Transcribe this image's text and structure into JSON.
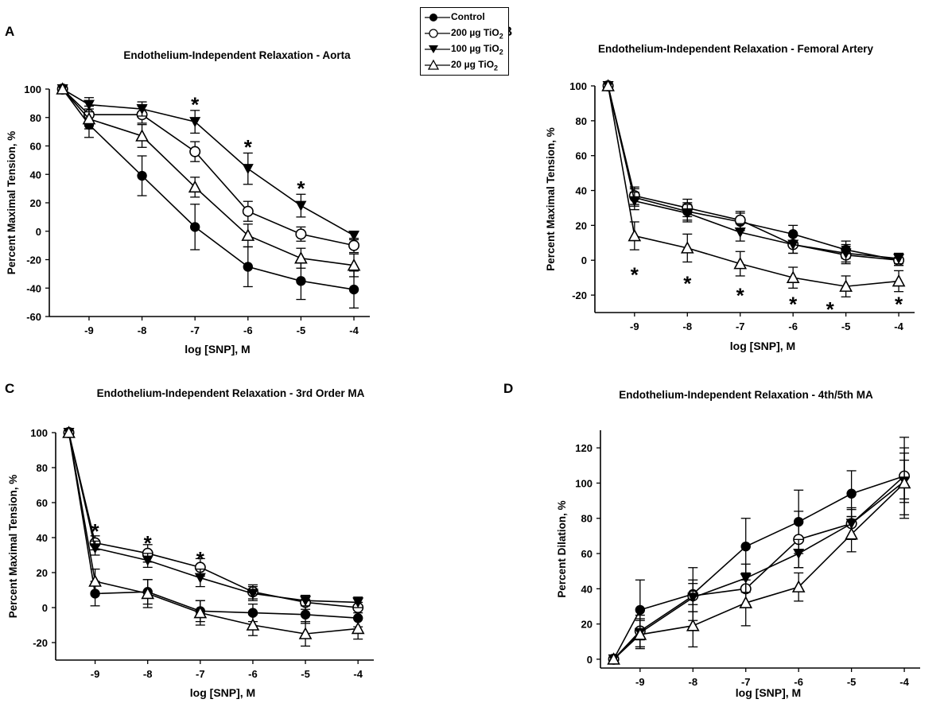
{
  "legend": {
    "entries": [
      {
        "label": "Control",
        "sub": "",
        "marker": "filled-circle"
      },
      {
        "label": "200 µg TiO",
        "sub": "2",
        "marker": "open-circle"
      },
      {
        "label": "100 µg TiO",
        "sub": "2",
        "marker": "filled-triangle-down"
      },
      {
        "label": "20 µg TiO",
        "sub": "2",
        "marker": "open-triangle-up"
      }
    ]
  },
  "colors": {
    "ink": "#000000",
    "background": "#ffffff"
  },
  "chart_data": [
    {
      "panel": "A",
      "type": "line",
      "title": "Endothelium-Independent Relaxation - Aorta",
      "xlabel": "log [SNP], M",
      "ylabel": "Percent Maximal Tension, %",
      "x": [
        -9.5,
        -9,
        -8,
        -7,
        -6,
        -5,
        -4
      ],
      "xticks": [
        -9,
        -8,
        -7,
        -6,
        -5,
        -4
      ],
      "xlim": [
        -9.75,
        -3.7
      ],
      "ylim": [
        -60,
        100
      ],
      "yticks": [
        -60,
        -40,
        -20,
        0,
        20,
        40,
        60,
        80,
        100
      ],
      "series": [
        {
          "name": "Control",
          "marker": "filled-circle",
          "values": [
            100,
            75,
            39,
            3,
            -25,
            -35,
            -41
          ],
          "errors": [
            0,
            9,
            14,
            16,
            14,
            13,
            13
          ]
        },
        {
          "name": "200 µg TiO2",
          "marker": "open-circle",
          "values": [
            100,
            82,
            82,
            56,
            14,
            -2,
            -10
          ],
          "errors": [
            0,
            6,
            6,
            7,
            7,
            5,
            5
          ]
        },
        {
          "name": "100 µg TiO2",
          "marker": "filled-triangle-down",
          "values": [
            100,
            89,
            86,
            77,
            44,
            18,
            -3
          ],
          "errors": [
            0,
            5,
            5,
            8,
            11,
            8,
            3
          ]
        },
        {
          "name": "20 µg TiO2",
          "marker": "open-triangle-up",
          "values": [
            100,
            79,
            67,
            31,
            -3,
            -19,
            -24
          ],
          "errors": [
            0,
            7,
            8,
            7,
            8,
            7,
            8
          ]
        }
      ],
      "annotations": [
        {
          "text": "*",
          "x": -7,
          "y": 92
        },
        {
          "text": "*",
          "x": -6,
          "y": 62
        },
        {
          "text": "*",
          "x": -5,
          "y": 33
        }
      ]
    },
    {
      "panel": "B",
      "type": "line",
      "title": "Endothelium-Independent Relaxation - Femoral Artery",
      "xlabel": "log [SNP], M",
      "ylabel": "Percent Maximal Tension, %",
      "x": [
        -9.5,
        -9,
        -8,
        -7,
        -6,
        -5,
        -4
      ],
      "xticks": [
        -9,
        -8,
        -7,
        -6,
        -5,
        -4
      ],
      "xlim": [
        -9.75,
        -3.7
      ],
      "ylim": [
        -30,
        100
      ],
      "yticks": [
        -20,
        0,
        20,
        40,
        60,
        80,
        100
      ],
      "series": [
        {
          "name": "Control",
          "marker": "filled-circle",
          "values": [
            100,
            36,
            28,
            22,
            15,
            6,
            0
          ],
          "errors": [
            0,
            5,
            5,
            5,
            5,
            5,
            3
          ]
        },
        {
          "name": "200 µg TiO2",
          "marker": "open-circle",
          "values": [
            100,
            37,
            30,
            23,
            9,
            3,
            0
          ],
          "errors": [
            0,
            5,
            5,
            5,
            5,
            5,
            3
          ]
        },
        {
          "name": "100 µg TiO2",
          "marker": "filled-triangle-down",
          "values": [
            100,
            34,
            27,
            16,
            9,
            4,
            1
          ],
          "errors": [
            0,
            5,
            5,
            5,
            5,
            5,
            3
          ]
        },
        {
          "name": "20 µg TiO2",
          "marker": "open-triangle-up",
          "values": [
            100,
            14,
            7,
            -2,
            -10,
            -15,
            -12
          ],
          "errors": [
            0,
            8,
            8,
            7,
            6,
            6,
            6
          ]
        }
      ],
      "annotations": [
        {
          "text": "*",
          "x": -9,
          "y": -6
        },
        {
          "text": "*",
          "x": -8,
          "y": -11
        },
        {
          "text": "*",
          "x": -7,
          "y": -18
        },
        {
          "text": "*",
          "x": -6,
          "y": -23
        },
        {
          "text": "*",
          "x": -5.3,
          "y": -26
        },
        {
          "text": "*",
          "x": -4,
          "y": -23
        }
      ]
    },
    {
      "panel": "C",
      "type": "line",
      "title": "Endothelium-Independent Relaxation - 3rd Order MA",
      "xlabel": "log [SNP], M",
      "ylabel": "Percent Maximal Tension, %",
      "x": [
        -9.5,
        -9,
        -8,
        -7,
        -6,
        -5,
        -4
      ],
      "xticks": [
        -9,
        -8,
        -7,
        -6,
        -5,
        -4
      ],
      "xlim": [
        -9.75,
        -3.7
      ],
      "ylim": [
        -30,
        100
      ],
      "yticks": [
        -20,
        0,
        20,
        40,
        60,
        80,
        100
      ],
      "series": [
        {
          "name": "Control",
          "marker": "filled-circle",
          "values": [
            100,
            8,
            9,
            -2,
            -3,
            -4,
            -6
          ],
          "errors": [
            0,
            7,
            7,
            6,
            5,
            5,
            5
          ]
        },
        {
          "name": "200 µg TiO2",
          "marker": "open-circle",
          "values": [
            100,
            37,
            31,
            23,
            9,
            3,
            0
          ],
          "errors": [
            0,
            4,
            5,
            5,
            4,
            4,
            3
          ]
        },
        {
          "name": "100 µg TiO2",
          "marker": "filled-triangle-down",
          "values": [
            100,
            34,
            27,
            17,
            8,
            4,
            3
          ],
          "errors": [
            0,
            4,
            4,
            5,
            4,
            3,
            3
          ]
        },
        {
          "name": "20 µg TiO2",
          "marker": "open-triangle-up",
          "values": [
            100,
            15,
            8,
            -3,
            -10,
            -15,
            -12
          ],
          "errors": [
            0,
            7,
            8,
            7,
            6,
            7,
            6
          ]
        }
      ],
      "annotations": [
        {
          "text": "*",
          "x": -9,
          "y": 46
        },
        {
          "text": "*",
          "x": -8,
          "y": 39
        },
        {
          "text": "*",
          "x": -7,
          "y": 30
        }
      ]
    },
    {
      "panel": "D",
      "type": "line",
      "title": "Endothelium-Independent Relaxation - 4th/5th MA",
      "xlabel": "log [SNP], M",
      "ylabel": "Percent Dilation, %",
      "x": [
        -9.5,
        -9,
        -8,
        -7,
        -6,
        -5,
        -4
      ],
      "xticks": [
        -9,
        -8,
        -7,
        -6,
        -5,
        -4
      ],
      "xlim": [
        -9.75,
        -3.7
      ],
      "ylim": [
        -5,
        130
      ],
      "yticks": [
        0,
        20,
        40,
        60,
        80,
        100,
        120
      ],
      "series": [
        {
          "name": "Control",
          "marker": "filled-circle",
          "values": [
            0,
            28,
            37,
            64,
            78,
            94,
            104
          ],
          "errors": [
            0,
            17,
            15,
            16,
            18,
            13,
            22
          ]
        },
        {
          "name": "200 µg TiO2",
          "marker": "open-circle",
          "values": [
            0,
            16,
            36,
            40,
            68,
            77,
            104
          ],
          "errors": [
            0,
            9,
            9,
            9,
            16,
            9,
            13
          ]
        },
        {
          "name": "100 µg TiO2",
          "marker": "filled-triangle-down",
          "values": [
            0,
            15,
            35,
            46,
            60,
            77,
            101
          ],
          "errors": [
            0,
            8,
            8,
            8,
            8,
            8,
            12
          ]
        },
        {
          "name": "20 µg TiO2",
          "marker": "open-triangle-up",
          "values": [
            0,
            14,
            19,
            32,
            41,
            71,
            100
          ],
          "errors": [
            0,
            8,
            12,
            13,
            8,
            10,
            20
          ]
        }
      ],
      "annotations": []
    }
  ]
}
